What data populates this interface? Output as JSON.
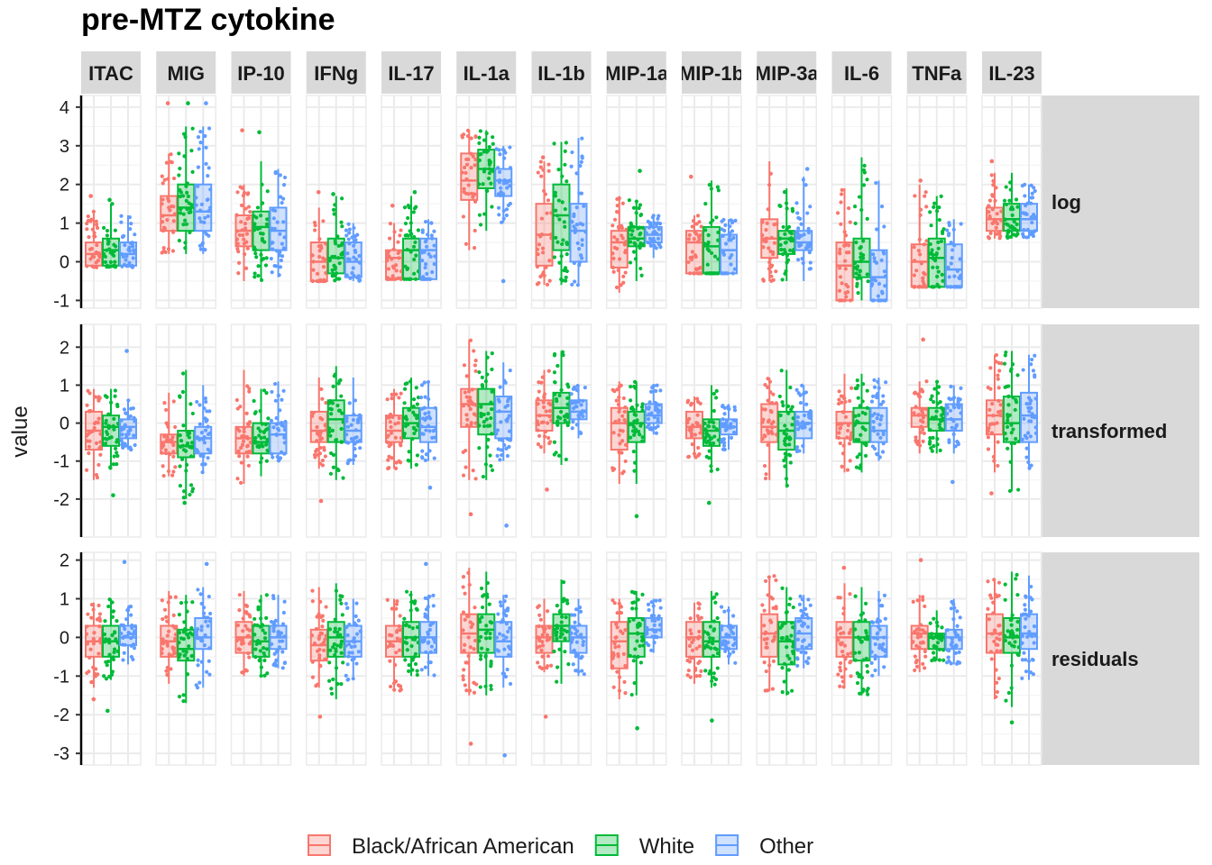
{
  "chart_data": {
    "type": "boxplot",
    "title": "pre-MTZ cytokine",
    "ylabel": "value",
    "xlabel": "",
    "cytokines": [
      "ITAC",
      "MIG",
      "IP-10",
      "IFNg",
      "IL-17",
      "IL-1a",
      "IL-1b",
      "MIP-1a",
      "MIP-1b",
      "MIP-3a",
      "IL-6",
      "TNFa",
      "IL-23"
    ],
    "rows": [
      {
        "name": "log",
        "ylim": [
          -1.2,
          4.3
        ],
        "ticks": [
          -1,
          0,
          1,
          2,
          3,
          4
        ]
      },
      {
        "name": "transformed",
        "ylim": [
          -3.0,
          2.6
        ],
        "ticks": [
          -2,
          -1,
          0,
          1,
          2
        ]
      },
      {
        "name": "residuals",
        "ylim": [
          -3.3,
          2.2
        ],
        "ticks": [
          -3,
          -2,
          -1,
          0,
          1,
          2
        ]
      }
    ],
    "groups": [
      {
        "name": "Black/African American",
        "color": "#F8766D"
      },
      {
        "name": "White",
        "color": "#00BA38"
      },
      {
        "name": "Other",
        "color": "#619CFF"
      }
    ],
    "legend_position": "bottom",
    "boxes": [
      [
        [
          [
            -0.15,
            -0.1,
            0.2,
            0.5,
            1.3
          ],
          [
            -0.15,
            -0.1,
            0.3,
            0.6,
            1.5
          ],
          [
            -0.15,
            -0.1,
            0.2,
            0.5,
            1.2
          ]
        ],
        [
          [
            0.2,
            0.8,
            1.2,
            1.7,
            2.8
          ],
          [
            0.2,
            0.8,
            1.4,
            2.0,
            3.5
          ],
          [
            0.2,
            0.8,
            1.3,
            2.0,
            3.5
          ]
        ],
        [
          [
            -0.5,
            0.4,
            0.8,
            1.2,
            2.0
          ],
          [
            -0.5,
            0.3,
            0.9,
            1.3,
            2.6
          ],
          [
            -0.4,
            0.3,
            0.8,
            1.4,
            2.4
          ]
        ],
        [
          [
            -0.5,
            -0.5,
            0.0,
            0.5,
            1.4
          ],
          [
            -0.5,
            -0.3,
            0.1,
            0.6,
            1.7
          ],
          [
            -0.5,
            -0.4,
            0.0,
            0.5,
            1.0
          ]
        ],
        [
          [
            -0.45,
            -0.45,
            0.1,
            0.3,
            1.0
          ],
          [
            -0.45,
            -0.45,
            0.3,
            0.6,
            1.7
          ],
          [
            -0.45,
            -0.45,
            0.3,
            0.6,
            1.1
          ]
        ],
        [
          [
            0.3,
            1.6,
            2.1,
            2.8,
            3.4
          ],
          [
            0.8,
            1.9,
            2.4,
            2.9,
            3.4
          ],
          [
            1.0,
            1.7,
            2.1,
            2.4,
            3.0
          ]
        ],
        [
          [
            -0.6,
            -0.1,
            0.7,
            1.5,
            2.6
          ],
          [
            -0.6,
            0.3,
            1.2,
            2.0,
            3.1
          ],
          [
            -0.6,
            0.0,
            0.8,
            1.5,
            3.2
          ]
        ],
        [
          [
            -0.8,
            -0.15,
            0.5,
            0.8,
            1.7
          ],
          [
            -0.5,
            0.4,
            0.6,
            0.9,
            1.6
          ],
          [
            0.1,
            0.5,
            0.7,
            0.9,
            1.2
          ]
        ],
        [
          [
            -0.3,
            -0.3,
            0.5,
            0.8,
            1.2
          ],
          [
            -0.3,
            -0.3,
            0.4,
            0.9,
            2.1
          ],
          [
            -0.3,
            -0.3,
            0.3,
            0.7,
            1.1
          ]
        ],
        [
          [
            -0.5,
            0.1,
            0.6,
            1.1,
            2.6
          ],
          [
            -0.5,
            0.2,
            0.6,
            0.8,
            1.9
          ],
          [
            -0.5,
            0.3,
            0.5,
            0.8,
            2.2
          ]
        ],
        [
          [
            -1.0,
            -1.0,
            -0.1,
            0.5,
            1.9
          ],
          [
            -1.0,
            -0.4,
            0.0,
            0.6,
            2.7
          ],
          [
            -1.0,
            -1.0,
            -0.4,
            0.3,
            2.1
          ]
        ],
        [
          [
            -0.65,
            -0.65,
            0.0,
            0.45,
            2.0
          ],
          [
            -0.65,
            -0.65,
            0.1,
            0.6,
            1.7
          ],
          [
            -0.65,
            -0.65,
            -0.2,
            0.45,
            1.1
          ]
        ],
        [
          [
            0.6,
            0.8,
            1.1,
            1.4,
            2.3
          ],
          [
            0.6,
            0.8,
            1.1,
            1.5,
            2.3
          ],
          [
            0.6,
            0.8,
            1.1,
            1.5,
            2.0
          ]
        ]
      ],
      [
        [
          [
            -1.5,
            -0.7,
            -0.2,
            0.3,
            0.9
          ],
          [
            -1.2,
            -0.6,
            -0.1,
            0.2,
            0.9
          ],
          [
            -0.7,
            -0.4,
            -0.1,
            0.1,
            0.6
          ]
        ],
        [
          [
            -1.4,
            -0.8,
            -0.5,
            -0.3,
            0.8
          ],
          [
            -2.0,
            -0.9,
            -0.6,
            -0.2,
            1.4
          ],
          [
            -1.3,
            -0.8,
            -0.4,
            -0.1,
            1.0
          ]
        ],
        [
          [
            -1.6,
            -0.8,
            -0.4,
            -0.1,
            1.4
          ],
          [
            -1.4,
            -0.8,
            -0.5,
            0.0,
            0.9
          ],
          [
            -1.0,
            -0.8,
            -0.3,
            0.0,
            1.1
          ]
        ],
        [
          [
            -1.2,
            -0.5,
            -0.2,
            0.3,
            1.2
          ],
          [
            -1.5,
            -0.5,
            0.1,
            0.6,
            1.5
          ],
          [
            -1.1,
            -0.5,
            -0.2,
            0.2,
            1.2
          ]
        ],
        [
          [
            -1.2,
            -0.5,
            -0.2,
            0.2,
            0.9
          ],
          [
            -1.2,
            -0.4,
            0.0,
            0.4,
            1.2
          ],
          [
            -1.0,
            -0.5,
            -0.1,
            0.4,
            1.1
          ]
        ],
        [
          [
            -1.5,
            -0.1,
            0.5,
            0.9,
            2.2
          ],
          [
            -1.5,
            -0.3,
            0.5,
            0.9,
            1.9
          ],
          [
            -1.0,
            -0.4,
            0.3,
            0.7,
            1.6
          ]
        ],
        [
          [
            -0.8,
            -0.2,
            0.2,
            0.6,
            1.4
          ],
          [
            -1.1,
            0.0,
            0.4,
            0.8,
            1.9
          ],
          [
            -0.4,
            0.1,
            0.3,
            0.6,
            1.0
          ]
        ],
        [
          [
            -1.6,
            -0.7,
            0.0,
            0.4,
            1.1
          ],
          [
            -1.6,
            -0.5,
            0.0,
            0.3,
            1.1
          ],
          [
            -0.3,
            0.0,
            0.2,
            0.5,
            1.0
          ]
        ],
        [
          [
            -0.9,
            -0.4,
            -0.1,
            0.3,
            0.7
          ],
          [
            -1.3,
            -0.6,
            -0.2,
            0.1,
            1.0
          ],
          [
            -0.7,
            -0.3,
            -0.1,
            0.1,
            0.5
          ]
        ],
        [
          [
            -1.5,
            -0.5,
            -0.1,
            0.5,
            1.2
          ],
          [
            -1.7,
            -0.7,
            -0.2,
            0.3,
            1.4
          ],
          [
            -0.8,
            -0.4,
            0.0,
            0.3,
            1.0
          ]
        ],
        [
          [
            -1.3,
            -0.4,
            0.0,
            0.3,
            1.3
          ],
          [
            -1.3,
            -0.5,
            0.0,
            0.4,
            1.3
          ],
          [
            -1.0,
            -0.5,
            -0.2,
            0.4,
            1.2
          ]
        ],
        [
          [
            -0.8,
            -0.1,
            0.2,
            0.4,
            1.1
          ],
          [
            -0.8,
            -0.2,
            0.1,
            0.4,
            1.1
          ],
          [
            -0.8,
            -0.2,
            0.1,
            0.5,
            1.0
          ]
        ],
        [
          [
            -1.3,
            -0.3,
            0.2,
            0.6,
            1.8
          ],
          [
            -1.8,
            -0.5,
            0.0,
            0.7,
            1.9
          ],
          [
            -1.2,
            -0.5,
            0.2,
            0.8,
            1.8
          ]
        ]
      ],
      [
        [
          [
            -1.3,
            -0.5,
            -0.1,
            0.3,
            0.9
          ],
          [
            -1.1,
            -0.5,
            -0.1,
            0.3,
            1.0
          ],
          [
            -0.7,
            -0.2,
            0.0,
            0.3,
            0.8
          ]
        ],
        [
          [
            -1.2,
            -0.5,
            -0.1,
            0.3,
            1.2
          ],
          [
            -1.7,
            -0.6,
            -0.3,
            0.2,
            1.1
          ],
          [
            -1.3,
            -0.3,
            0.0,
            0.5,
            1.3
          ]
        ],
        [
          [
            -1.0,
            -0.4,
            0.0,
            0.4,
            1.2
          ],
          [
            -1.0,
            -0.5,
            -0.1,
            0.3,
            1.1
          ],
          [
            -0.8,
            -0.3,
            0.0,
            0.3,
            1.1
          ]
        ],
        [
          [
            -1.3,
            -0.6,
            -0.2,
            0.2,
            1.3
          ],
          [
            -1.6,
            -0.5,
            0.0,
            0.4,
            1.4
          ],
          [
            -1.1,
            -0.5,
            -0.1,
            0.3,
            1.0
          ]
        ],
        [
          [
            -1.4,
            -0.5,
            -0.1,
            0.3,
            1.0
          ],
          [
            -1.0,
            -0.5,
            0.0,
            0.4,
            1.2
          ],
          [
            -1.0,
            -0.4,
            0.0,
            0.4,
            1.1
          ]
        ],
        [
          [
            -1.5,
            -0.4,
            0.1,
            0.6,
            1.8
          ],
          [
            -1.5,
            -0.4,
            0.2,
            0.6,
            1.7
          ],
          [
            -1.3,
            -0.5,
            -0.1,
            0.4,
            1.1
          ]
        ],
        [
          [
            -0.9,
            -0.4,
            0.0,
            0.3,
            1.0
          ],
          [
            -1.2,
            -0.1,
            0.3,
            0.6,
            1.5
          ],
          [
            -1.0,
            -0.4,
            0.0,
            0.3,
            1.0
          ]
        ],
        [
          [
            -1.6,
            -0.8,
            -0.1,
            0.4,
            1.0
          ],
          [
            -1.5,
            -0.5,
            0.1,
            0.5,
            1.2
          ],
          [
            -0.4,
            0.0,
            0.2,
            0.5,
            1.0
          ]
        ],
        [
          [
            -1.2,
            -0.5,
            0.0,
            0.4,
            0.9
          ],
          [
            -1.3,
            -0.5,
            -0.1,
            0.4,
            1.2
          ],
          [
            -0.7,
            -0.3,
            0.0,
            0.3,
            0.8
          ]
        ],
        [
          [
            -1.4,
            -0.5,
            0.1,
            0.6,
            1.6
          ],
          [
            -1.5,
            -0.7,
            -0.1,
            0.4,
            1.3
          ],
          [
            -0.8,
            -0.3,
            0.1,
            0.5,
            1.1
          ]
        ],
        [
          [
            -1.3,
            -0.5,
            0.0,
            0.4,
            1.4
          ],
          [
            -1.5,
            -0.6,
            0.0,
            0.4,
            1.3
          ],
          [
            -1.0,
            -0.5,
            0.0,
            0.3,
            1.2
          ]
        ],
        [
          [
            -0.9,
            -0.3,
            0.1,
            0.3,
            1.1
          ],
          [
            -0.6,
            -0.3,
            0.0,
            0.1,
            0.7
          ],
          [
            -0.7,
            -0.3,
            0.0,
            0.2,
            1.0
          ]
        ],
        [
          [
            -1.6,
            -0.4,
            0.1,
            0.6,
            1.5
          ],
          [
            -1.8,
            -0.4,
            0.0,
            0.5,
            1.7
          ],
          [
            -1.1,
            -0.3,
            0.1,
            0.6,
            1.6
          ]
        ]
      ]
    ],
    "outliers": [
      [
        [
          [
            1.7
          ],
          [
            1.6
          ],
          []
        ],
        [
          [
            4.1
          ],
          [
            4.1
          ],
          [
            4.1
          ]
        ],
        [
          [
            3.4
          ],
          [
            3.35
          ],
          []
        ],
        [
          [
            1.8
          ],
          [
            1.75
          ],
          []
        ],
        [
          [
            1.45
          ],
          [
            1.8
          ],
          []
        ],
        [
          [],
          [],
          [
            -0.5
          ]
        ],
        [
          [
            2.7
          ],
          [],
          []
        ],
        [
          [],
          [
            2.35
          ],
          []
        ],
        [
          [
            2.2
          ],
          [],
          []
        ],
        [
          [],
          [],
          [
            2.4
          ]
        ],
        [
          [],
          [],
          []
        ],
        [
          [
            2.1
          ],
          [],
          []
        ],
        [
          [
            2.6
          ],
          [],
          []
        ]
      ],
      [
        [
          [],
          [
            -1.9
          ],
          [
            1.9
          ]
        ],
        [
          [],
          [
            -2.1
          ],
          []
        ],
        [
          [],
          [],
          []
        ],
        [
          [
            -2.05
          ],
          [],
          []
        ],
        [
          [],
          [],
          [
            -1.7
          ]
        ],
        [
          [
            -2.4
          ],
          [],
          [
            -2.7
          ]
        ],
        [
          [
            -1.75
          ],
          [],
          []
        ],
        [
          [],
          [
            -2.45
          ],
          []
        ],
        [
          [],
          [
            -2.1
          ],
          []
        ],
        [
          [],
          [],
          []
        ],
        [
          [],
          [],
          []
        ],
        [
          [
            2.2
          ],
          [],
          [
            -1.55
          ]
        ],
        [
          [
            -1.85
          ],
          [],
          []
        ]
      ],
      [
        [
          [
            -1.6
          ],
          [
            -1.9
          ],
          [
            1.95
          ]
        ],
        [
          [],
          [],
          [
            1.9
          ]
        ],
        [
          [],
          [],
          []
        ],
        [
          [
            -2.05
          ],
          [],
          []
        ],
        [
          [],
          [],
          [
            1.9
          ]
        ],
        [
          [
            -2.75
          ],
          [],
          [
            -3.05
          ]
        ],
        [
          [
            -2.05
          ],
          [],
          []
        ],
        [
          [],
          [
            -2.35
          ],
          []
        ],
        [
          [],
          [
            -2.15
          ],
          []
        ],
        [
          [],
          [],
          []
        ],
        [
          [
            1.8
          ],
          [],
          []
        ],
        [
          [
            2.0
          ],
          [],
          []
        ],
        [
          [],
          [
            -2.2
          ],
          []
        ]
      ]
    ]
  }
}
